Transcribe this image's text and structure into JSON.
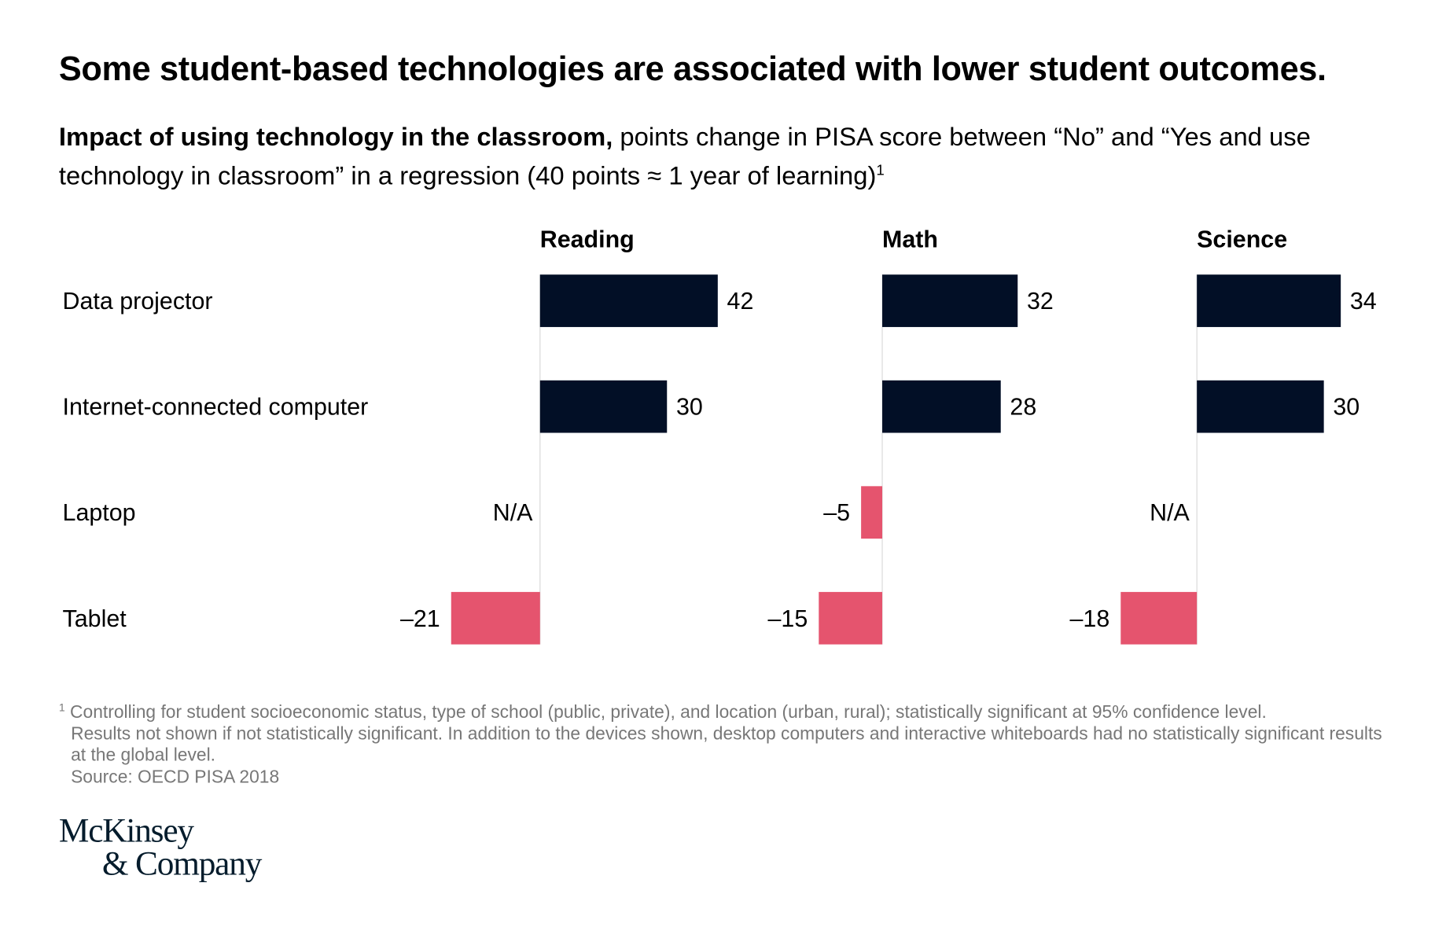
{
  "title": "Some student-based technologies are associated with lower student outcomes.",
  "subtitle_bold": "Impact of using technology in the classroom,",
  "subtitle_rest": " points change in PISA score between “No” and “Yes and use technology in classroom” in a regression (40 points ≈ 1 year of learning)",
  "subtitle_sup": "1",
  "chart_data": {
    "type": "bar",
    "orientation": "horizontal",
    "categories": [
      "Data projector",
      "Internet-connected computer",
      "Laptop",
      "Tablet"
    ],
    "series": [
      {
        "name": "Reading",
        "values": [
          42,
          30,
          null,
          -21
        ],
        "labels": [
          "42",
          "30",
          "N/A",
          "–21"
        ]
      },
      {
        "name": "Math",
        "values": [
          32,
          28,
          -5,
          -15
        ],
        "labels": [
          "32",
          "28",
          "–5",
          "–15"
        ]
      },
      {
        "name": "Science",
        "values": [
          34,
          30,
          null,
          -18
        ],
        "labels": [
          "34",
          "30",
          "N/A",
          "–18"
        ]
      }
    ],
    "colors": {
      "positive": "#020f26",
      "negative": "#e5546e",
      "axis": "#d9d9d9"
    }
  },
  "footnote_marker": "1",
  "footnote": "Controlling for student socioeconomic status, type of school (public, private), and location (urban, rural); statistically significant at 95% confidence level.",
  "footnote_2": "Results not shown if not statistically significant. In addition to the devices shown, desktop computers and interactive whiteboards had no statistically significant results at the global level.",
  "source": "Source: OECD PISA 2018",
  "logo": {
    "line1": "McKinsey",
    "line2": "& Company"
  }
}
